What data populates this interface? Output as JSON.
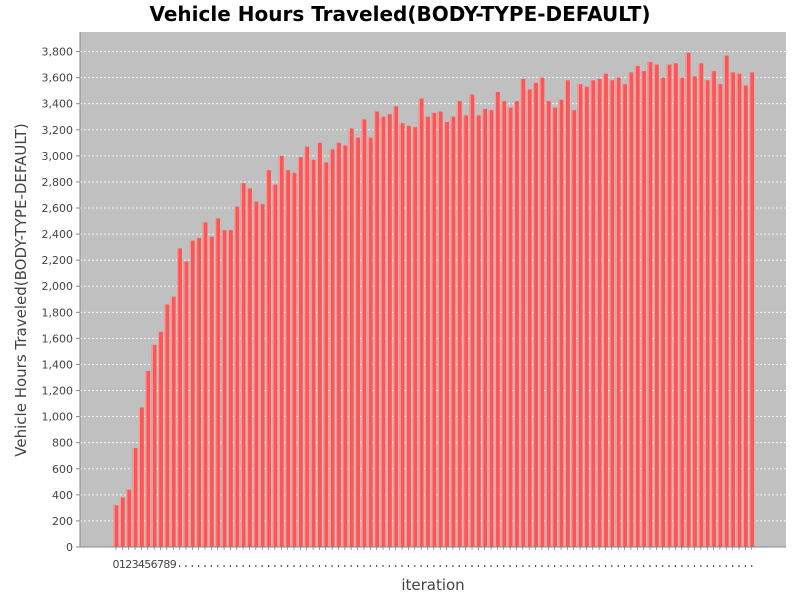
{
  "chart_data": {
    "type": "bar",
    "title": "Vehicle Hours Traveled(BODY-TYPE-DEFAULT)",
    "xlabel": "iteration",
    "ylabel": "Vehicle Hours Traveled(BODY-TYPE-DEFAULT)",
    "ylim": [
      0,
      3950
    ],
    "yticks": [
      0,
      200,
      400,
      600,
      800,
      1000,
      1200,
      1400,
      1600,
      1800,
      2000,
      2200,
      2400,
      2600,
      2800,
      3000,
      3200,
      3400,
      3600,
      3800
    ],
    "ytick_labels": [
      "0",
      "200",
      "400",
      "600",
      "800",
      "1,000",
      "1,200",
      "1,400",
      "1,600",
      "1,800",
      "2,000",
      "2,200",
      "2,400",
      "2,600",
      "2,800",
      "3,000",
      "3,200",
      "3,400",
      "3,600",
      "3,800"
    ],
    "x_tick_labels": [
      "0",
      "1",
      "2",
      "3",
      "4",
      "5",
      "6",
      "7",
      "8",
      "9"
    ],
    "grid": true,
    "colors": {
      "bar": "#ff5555",
      "plot_bg": "#c0c0c0",
      "grid": "#ffffff"
    },
    "values": [
      320,
      380,
      440,
      760,
      1070,
      1350,
      1550,
      1650,
      1860,
      1920,
      2290,
      2190,
      2350,
      2370,
      2490,
      2380,
      2520,
      2430,
      2430,
      2610,
      2790,
      2750,
      2650,
      2630,
      2890,
      2780,
      3000,
      2890,
      2870,
      2990,
      3070,
      2970,
      3100,
      2950,
      3050,
      3100,
      3080,
      3210,
      3140,
      3280,
      3140,
      3340,
      3300,
      3320,
      3380,
      3250,
      3230,
      3220,
      3440,
      3300,
      3330,
      3340,
      3260,
      3300,
      3420,
      3310,
      3470,
      3310,
      3360,
      3350,
      3490,
      3420,
      3370,
      3420,
      3590,
      3510,
      3560,
      3600,
      3420,
      3370,
      3430,
      3580,
      3350,
      3550,
      3530,
      3580,
      3590,
      3630,
      3580,
      3600,
      3550,
      3640,
      3690,
      3650,
      3720,
      3700,
      3600,
      3700,
      3710,
      3600,
      3790,
      3610,
      3710,
      3580,
      3650,
      3550,
      3770,
      3640,
      3630,
      3540,
      3640
    ]
  }
}
